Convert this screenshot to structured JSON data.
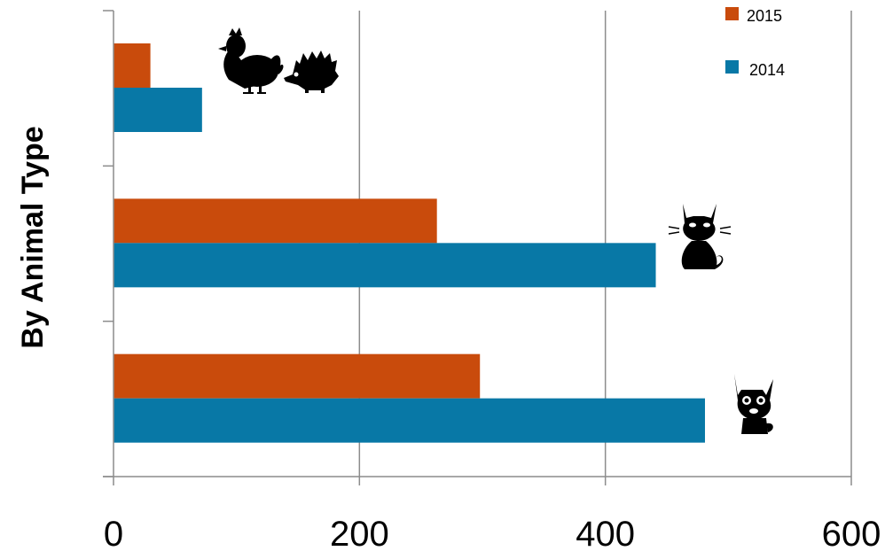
{
  "chart_data": {
    "type": "bar",
    "orientation": "horizontal",
    "title": "",
    "xlabel": "",
    "ylabel": "By Animal Type",
    "xlim": [
      0,
      600
    ],
    "x_ticks": [
      0,
      200,
      400,
      600
    ],
    "grid": true,
    "legend_position": "top-right",
    "categories": [
      "",
      "",
      ""
    ],
    "category_icons": [
      "rooster-hedgehog-icon",
      "cat-icon",
      "dog-icon"
    ],
    "series": [
      {
        "name": "2015",
        "color": "#c94b0c",
        "values": [
          30,
          263,
          298
        ]
      },
      {
        "name": "2014",
        "color": "#0878a6",
        "values": [
          72,
          441,
          481
        ]
      }
    ]
  }
}
